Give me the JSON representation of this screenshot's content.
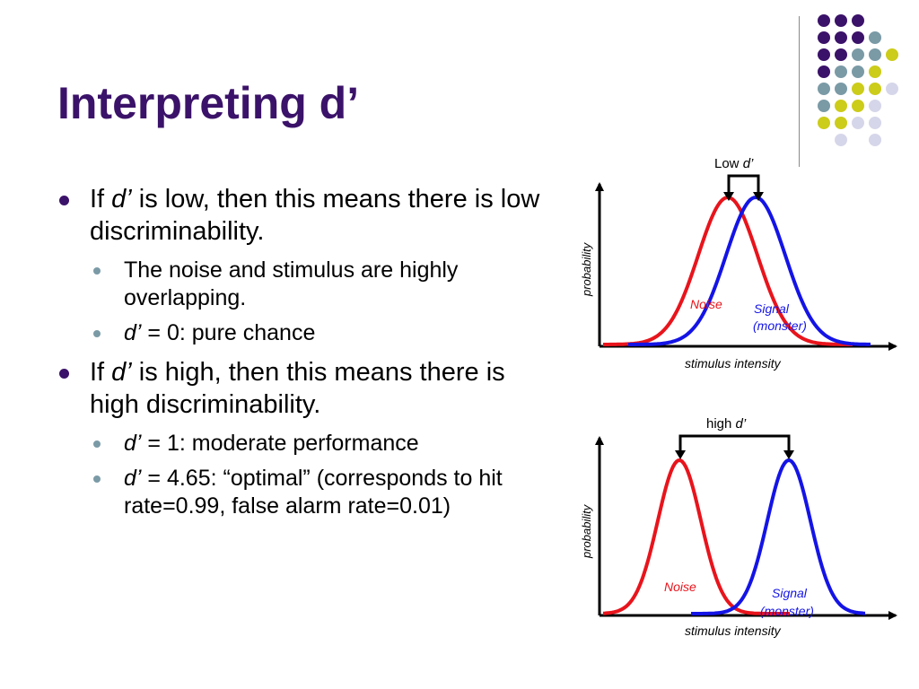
{
  "slide": {
    "title": "Interpreting d’"
  },
  "bullets": {
    "b1": {
      "prefix": "If ",
      "dprime": "d’",
      "rest": " is low, then this means there is low discriminability."
    },
    "b1_sub1": {
      "text": "The noise and stimulus are highly overlapping."
    },
    "b1_sub2": {
      "dprime": "d’",
      "rest": " = 0: pure chance"
    },
    "b2": {
      "prefix": "If ",
      "dprime": "d’",
      "rest": " is high, then this means there is high discriminability."
    },
    "b2_sub1": {
      "dprime": "d’",
      "rest": " = 1: moderate performance"
    },
    "b2_sub2": {
      "dprime": "d’",
      "rest": " = 4.65: “optimal” (corresponds to hit rate=0.99, false alarm rate=0.01)"
    }
  },
  "diagram_low": {
    "bracket_label_prefix": "Low ",
    "bracket_label_dprime": "d’",
    "y_axis_label": "probability",
    "x_axis_label": "stimulus intensity",
    "noise_label": "Noise",
    "signal_label_line1": "Signal",
    "signal_label_line2": "(monster)"
  },
  "diagram_high": {
    "bracket_label_prefix": "high ",
    "bracket_label_dprime": "d’",
    "y_axis_label": "probability",
    "x_axis_label": "stimulus intensity",
    "noise_label": "Noise",
    "signal_label_line1": "Signal",
    "signal_label_line2": "(monster)"
  },
  "colors": {
    "title": "#3b1269",
    "noise": "#e8141c",
    "signal": "#1414e6",
    "dot_purple": "#3b1269",
    "dot_teal": "#7a9aa6",
    "dot_yellow": "#cccc1a",
    "dot_lavender": "#d6d6ea"
  },
  "decor": {
    "dot_grid_colors": [
      [
        "dot_purple",
        "dot_purple",
        "dot_purple",
        "",
        ""
      ],
      [
        "dot_purple",
        "dot_purple",
        "dot_purple",
        "dot_teal",
        ""
      ],
      [
        "dot_purple",
        "dot_purple",
        "dot_teal",
        "dot_teal",
        "dot_yellow"
      ],
      [
        "dot_purple",
        "dot_teal",
        "dot_teal",
        "dot_yellow",
        ""
      ],
      [
        "dot_teal",
        "dot_teal",
        "dot_yellow",
        "dot_yellow",
        "dot_lavender"
      ],
      [
        "dot_teal",
        "dot_yellow",
        "dot_yellow",
        "dot_lavender",
        ""
      ],
      [
        "dot_yellow",
        "dot_yellow",
        "dot_lavender",
        "dot_lavender",
        ""
      ],
      [
        "",
        "dot_lavender",
        "",
        "dot_lavender",
        ""
      ]
    ]
  }
}
